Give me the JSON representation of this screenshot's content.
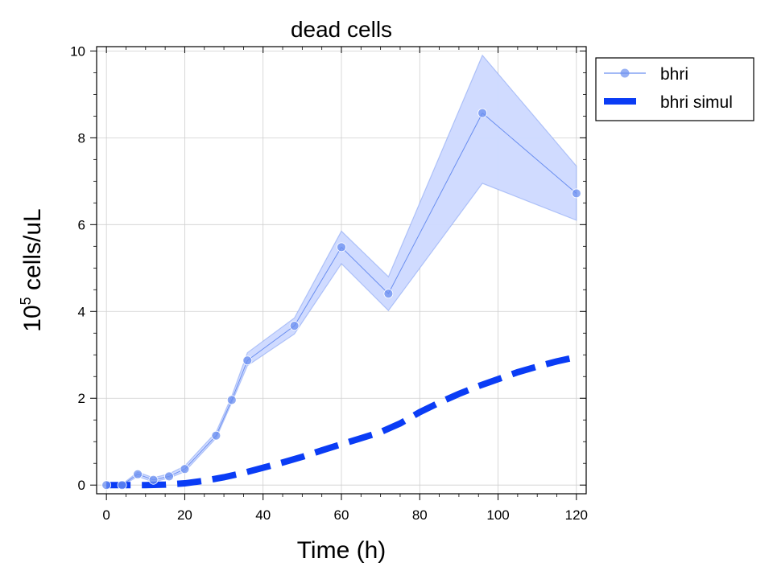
{
  "chart_data": {
    "type": "line",
    "title": "dead cells",
    "xlabel": "Time (h)",
    "ylabel_prefix": "10",
    "ylabel_exponent": "5",
    "ylabel_suffix": " cells/uL",
    "xlim": [
      -2.5,
      122.5
    ],
    "ylim": [
      -0.2,
      10.1
    ],
    "xticks": [
      0,
      20,
      40,
      60,
      80,
      100,
      120
    ],
    "yticks": [
      0,
      2,
      4,
      6,
      8,
      10
    ],
    "grid": true,
    "legend_position": "outside-top-right",
    "series": [
      {
        "name": "bhri",
        "style": "line-markers",
        "color": "#6b8ff0",
        "band_color": "#cdd9ff",
        "x": [
          0,
          4,
          8,
          12,
          16,
          20,
          28,
          32,
          36,
          48,
          60,
          72,
          96,
          120
        ],
        "y": [
          0.0,
          0.0,
          0.25,
          0.12,
          0.2,
          0.37,
          1.14,
          1.96,
          2.87,
          3.67,
          5.48,
          4.41,
          8.57,
          6.72
        ],
        "lower": [
          -0.02,
          -0.02,
          0.2,
          0.07,
          0.16,
          0.31,
          1.08,
          1.9,
          2.75,
          3.48,
          5.1,
          4.02,
          6.95,
          6.1
        ],
        "upper": [
          0.02,
          0.02,
          0.3,
          0.17,
          0.26,
          0.44,
          1.22,
          2.05,
          3.05,
          3.85,
          5.85,
          4.8,
          9.9,
          7.35
        ]
      },
      {
        "name": "bhri simul",
        "style": "dashed",
        "color": "#0a3cf5",
        "x": [
          0,
          5,
          10,
          15,
          20,
          25,
          30,
          35,
          40,
          45,
          50,
          55,
          60,
          65,
          70,
          72,
          75,
          80,
          85,
          90,
          95,
          100,
          105,
          110,
          115,
          120
        ],
        "y": [
          0.0,
          0.0,
          0.0,
          0.01,
          0.04,
          0.1,
          0.18,
          0.28,
          0.4,
          0.52,
          0.65,
          0.8,
          0.94,
          1.08,
          1.22,
          1.3,
          1.42,
          1.68,
          1.9,
          2.1,
          2.28,
          2.44,
          2.6,
          2.73,
          2.85,
          2.95
        ]
      }
    ]
  }
}
